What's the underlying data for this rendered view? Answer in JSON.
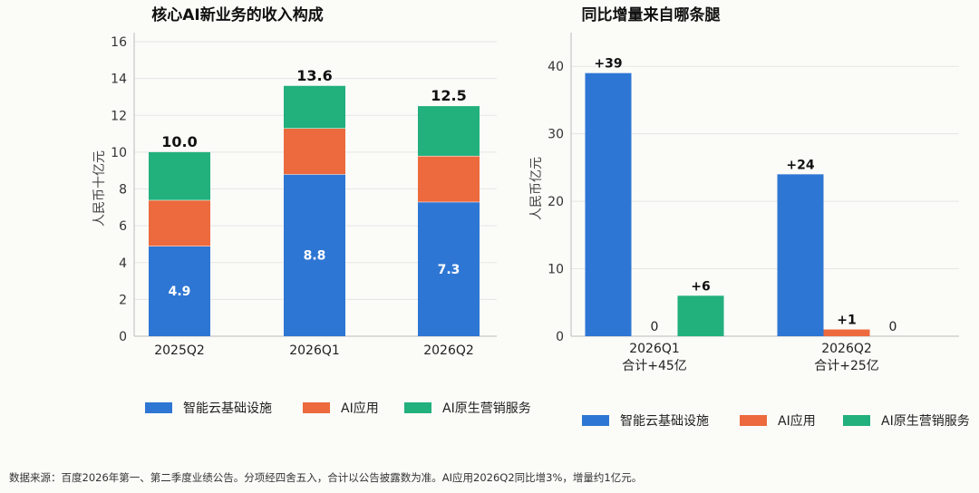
{
  "source_note": "数据来源：百度2026年第一、第二季度业绩公告。分项经四舍五入，合计以公告披露数为准。AI应用2026Q2同比增3%，增量约1亿元。",
  "colors": {
    "cloud": "#2e76d3",
    "app": "#ec6a3d",
    "native": "#22b07d",
    "grid": "#e6e6e6",
    "axis": "#bbbbbb"
  },
  "chart_data": [
    {
      "type": "bar",
      "stacked": true,
      "title": "核心AI新业务的收入构成",
      "ylabel": "人民币十亿元",
      "ylim": [
        0,
        16
      ],
      "yticks": [
        0,
        2,
        4,
        6,
        8,
        10,
        12,
        14,
        16
      ],
      "grid": true,
      "legend_position": "bottom",
      "categories": [
        "2025Q2",
        "2026Q1",
        "2026Q2"
      ],
      "series": [
        {
          "name": "智能云基础设施",
          "values": [
            4.9,
            8.8,
            7.3
          ],
          "labels": [
            "4.9",
            "8.8",
            "7.3"
          ],
          "color": "#2e76d3"
        },
        {
          "name": "AI应用",
          "values": [
            2.5,
            2.5,
            2.5
          ],
          "color": "#ec6a3d"
        },
        {
          "name": "AI原生营销服务",
          "values": [
            2.6,
            2.3,
            2.7
          ],
          "color": "#22b07d"
        }
      ],
      "totals": [
        "10.0",
        "13.6",
        "12.5"
      ]
    },
    {
      "type": "bar",
      "stacked": false,
      "title": "同比增量来自哪条腿",
      "ylabel": "人民币亿元",
      "ylim": [
        0,
        45
      ],
      "yticks": [
        0,
        10,
        20,
        30,
        40
      ],
      "grid": true,
      "legend_position": "bottom",
      "categories": [
        "2026Q1",
        "2026Q2"
      ],
      "category_sublabels": [
        "合计+45亿",
        "合计+25亿"
      ],
      "series": [
        {
          "name": "智能云基础设施",
          "values": [
            39,
            24
          ],
          "labels": [
            "+39",
            "+24"
          ],
          "color": "#2e76d3"
        },
        {
          "name": "AI应用",
          "values": [
            0,
            1
          ],
          "labels": [
            "0",
            "+1"
          ],
          "color": "#ec6a3d"
        },
        {
          "name": "AI原生营销服务",
          "values": [
            6,
            0
          ],
          "labels": [
            "+6",
            "0"
          ],
          "color": "#22b07d"
        }
      ]
    }
  ]
}
